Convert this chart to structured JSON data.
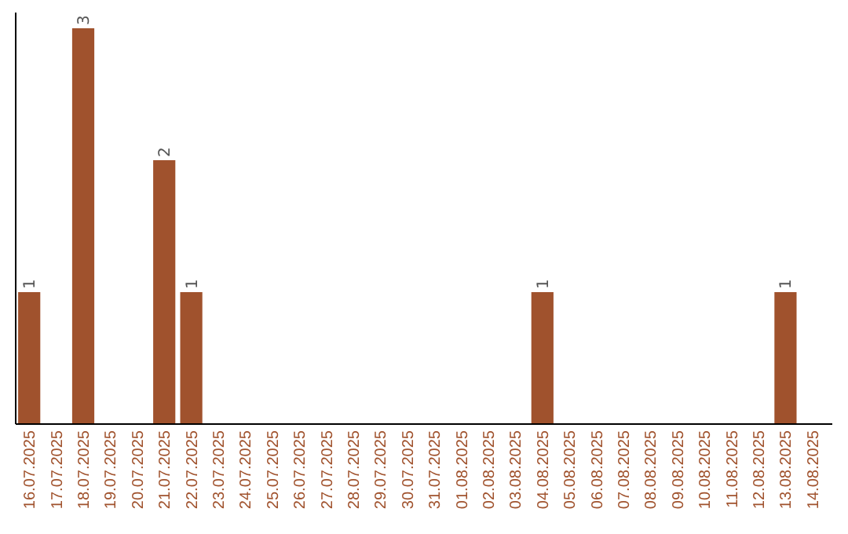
{
  "chart_data": {
    "type": "bar",
    "categories": [
      "16.07.2025",
      "17.07.2025",
      "18.07.2025",
      "19.07.2025",
      "20.07.2025",
      "21.07.2025",
      "22.07.2025",
      "23.07.2025",
      "24.07.2025",
      "25.07.2025",
      "26.07.2025",
      "27.07.2025",
      "28.07.2025",
      "29.07.2025",
      "30.07.2025",
      "31.07.2025",
      "01.08.2025",
      "02.08.2025",
      "03.08.2025",
      "04.08.2025",
      "05.08.2025",
      "06.08.2025",
      "07.08.2025",
      "08.08.2025",
      "09.08.2025",
      "10.08.2025",
      "11.08.2025",
      "12.08.2025",
      "13.08.2025",
      "14.08.2025"
    ],
    "values": [
      1,
      0,
      3,
      0,
      0,
      2,
      1,
      0,
      0,
      0,
      0,
      0,
      0,
      0,
      0,
      0,
      0,
      0,
      0,
      1,
      0,
      0,
      0,
      0,
      0,
      0,
      0,
      0,
      1,
      0
    ],
    "value_labels": [
      "1",
      null,
      "3",
      null,
      null,
      "2",
      "1",
      null,
      null,
      null,
      null,
      null,
      null,
      null,
      null,
      null,
      null,
      null,
      null,
      "1",
      null,
      null,
      null,
      null,
      null,
      null,
      null,
      null,
      "1",
      null
    ],
    "color": "#a0522d",
    "grid": false
  }
}
